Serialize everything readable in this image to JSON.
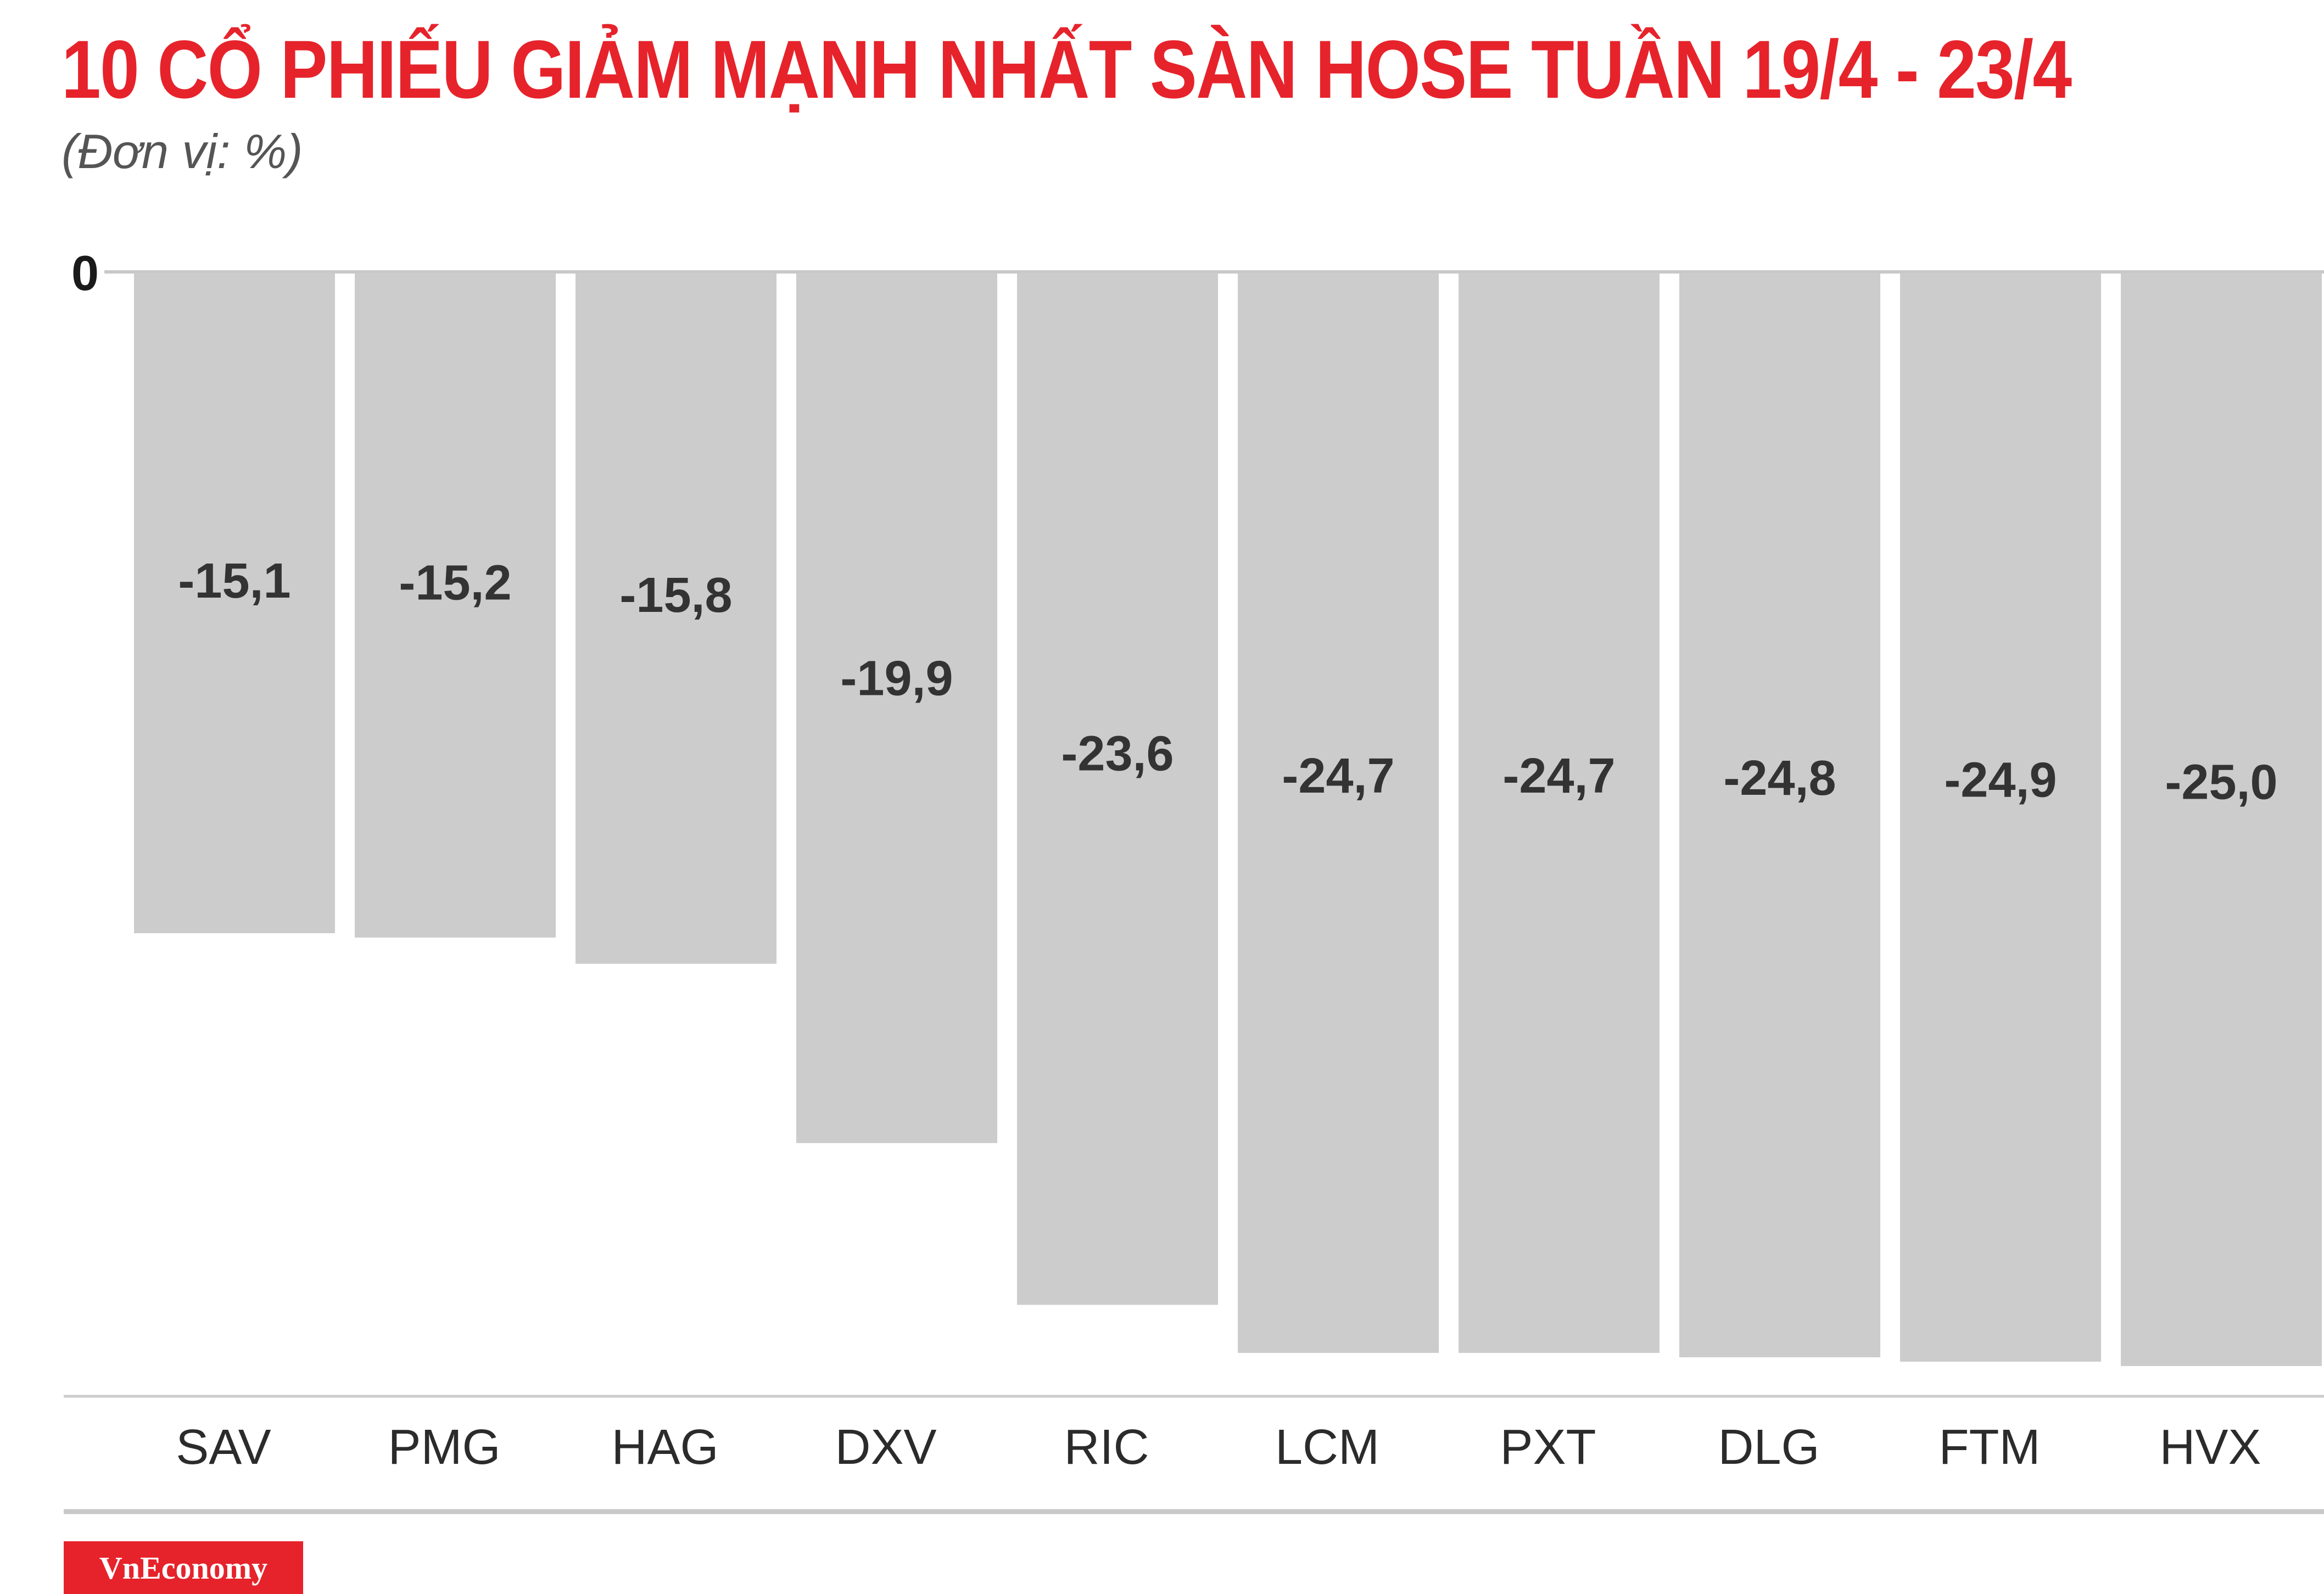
{
  "chart_data": {
    "type": "bar",
    "title": "10 CỔ PHIẾU GIẢM MẠNH NHẤT SÀN HOSE TUẦN 19/4 - 23/4",
    "subtitle": "(Đơn vị: %)",
    "categories": [
      "SAV",
      "PMG",
      "HAG",
      "DXV",
      "RIC",
      "LCM",
      "PXT",
      "DLG",
      "FTM",
      "HVX"
    ],
    "values": [
      -15.1,
      -15.2,
      -15.8,
      -19.9,
      -23.6,
      -24.7,
      -24.7,
      -24.8,
      -24.9,
      -25.0
    ],
    "data_labels": [
      "-15,1",
      "-15,2",
      "-15,8",
      "-19,9",
      "-23,6",
      "-24,7",
      "-24,7",
      "-24,8",
      "-24,9",
      "-25,0"
    ],
    "zero_label": "0",
    "xlabel": "",
    "ylabel": "",
    "ylim": [
      -25,
      0
    ],
    "grid": false,
    "bar_color": "#cccccc",
    "accent_color": "#e6232b"
  },
  "brand": {
    "logo_text": "VnEconomy"
  }
}
